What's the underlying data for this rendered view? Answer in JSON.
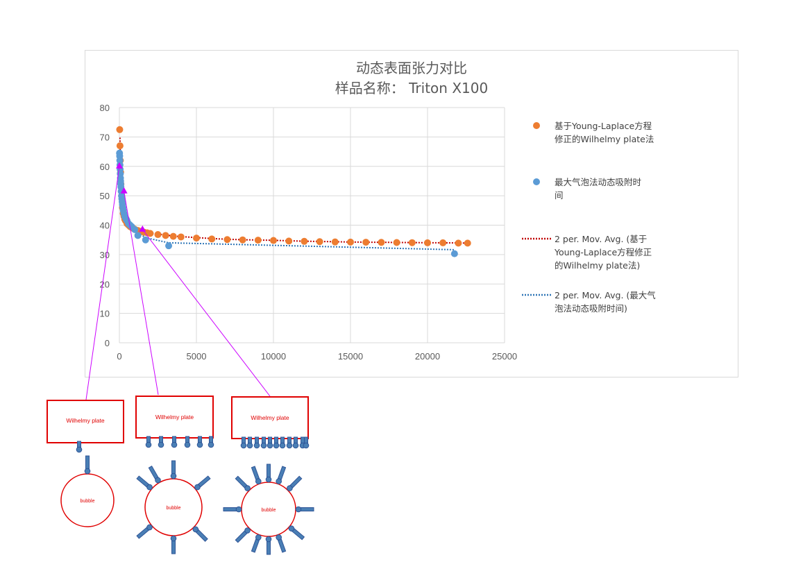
{
  "chart_data": {
    "type": "scatter",
    "title_line1": "动态表面张力对比",
    "title_line2": "样品名称：  Triton X100",
    "xlim": [
      0,
      25000
    ],
    "ylim": [
      0,
      80
    ],
    "x_ticks": [
      "0",
      "5000",
      "10000",
      "15000",
      "20000",
      "25000"
    ],
    "y_ticks": [
      "0",
      "10",
      "20",
      "30",
      "40",
      "50",
      "60",
      "70",
      "80"
    ],
    "grid": true,
    "legend_position": "right",
    "series": [
      {
        "name_lines": [
          "基于Young-Laplace方程",
          "修正的Wilhelmy plate法"
        ],
        "color": "#ed7d31",
        "marker": "circle",
        "x": [
          20,
          40,
          60,
          80,
          100,
          150,
          200,
          250,
          300,
          350,
          400,
          500,
          600,
          700,
          800,
          900,
          1000,
          1200,
          1400,
          1600,
          1800,
          2000,
          2500,
          3000,
          3500,
          4000,
          5000,
          6000,
          7000,
          8000,
          9000,
          10000,
          11000,
          12000,
          13000,
          14000,
          15000,
          16000,
          17000,
          18000,
          19000,
          20000,
          21000,
          22000,
          22600
        ],
        "y": [
          72.5,
          67,
          62,
          58,
          54,
          50,
          46,
          44,
          43,
          42,
          41.5,
          40.5,
          40,
          39.5,
          39.2,
          38.9,
          38.6,
          38.2,
          37.9,
          37.6,
          37.4,
          37.2,
          36.8,
          36.5,
          36.2,
          36,
          35.6,
          35.3,
          35.1,
          35,
          34.9,
          34.8,
          34.6,
          34.5,
          34.4,
          34.3,
          34.25,
          34.2,
          34.15,
          34.1,
          34.05,
          34,
          34,
          33.9,
          33.9
        ]
      },
      {
        "name_lines": [
          "最大气泡法动态吸附时",
          "间"
        ],
        "color": "#5b9bd5",
        "marker": "circle",
        "x": [
          10,
          20,
          30,
          40,
          50,
          60,
          70,
          80,
          90,
          100,
          120,
          140,
          160,
          180,
          200,
          230,
          260,
          300,
          350,
          400,
          450,
          500,
          600,
          700,
          800,
          1000,
          1200,
          1700,
          3200,
          21750
        ],
        "y": [
          64.5,
          63.5,
          62,
          60.5,
          59,
          57.5,
          56,
          55,
          54,
          53,
          51.5,
          50,
          49,
          48,
          47,
          46,
          45,
          44,
          43,
          42.5,
          42,
          41.5,
          40.5,
          40,
          39.5,
          38.5,
          36.5,
          35,
          33,
          30.3
        ]
      }
    ],
    "trendlines": [
      {
        "name_lines": [
          "2 per. Mov. Avg. (基于",
          "Young-Laplace方程修正",
          "的Wilhelmy plate法)"
        ],
        "color": "#c00000",
        "style": "dotted"
      },
      {
        "name_lines": [
          "2 per. Mov. Avg. (最大气",
          "泡法动态吸附时间)"
        ],
        "color": "#2e75b6",
        "style": "dotted"
      }
    ],
    "annotations": {
      "marker_color": "#cc00ff",
      "points": [
        {
          "x": 0,
          "y": 60
        },
        {
          "x": 300,
          "y": 51.5
        },
        {
          "x": 1500,
          "y": 38.5
        }
      ]
    }
  },
  "schematic": {
    "plate_label": "Wilhelmy plate",
    "bubble_label": "bubble",
    "plate_border_color": "#e00000",
    "surfactant_color": "#4a7fb5",
    "panels": [
      {
        "level": "low",
        "plate_molecules": 1,
        "bubble_molecules": 1
      },
      {
        "level": "medium",
        "plate_molecules": 6,
        "bubble_molecules": 7
      },
      {
        "level": "high",
        "plate_molecules": 11,
        "bubble_molecules": 12
      }
    ]
  }
}
